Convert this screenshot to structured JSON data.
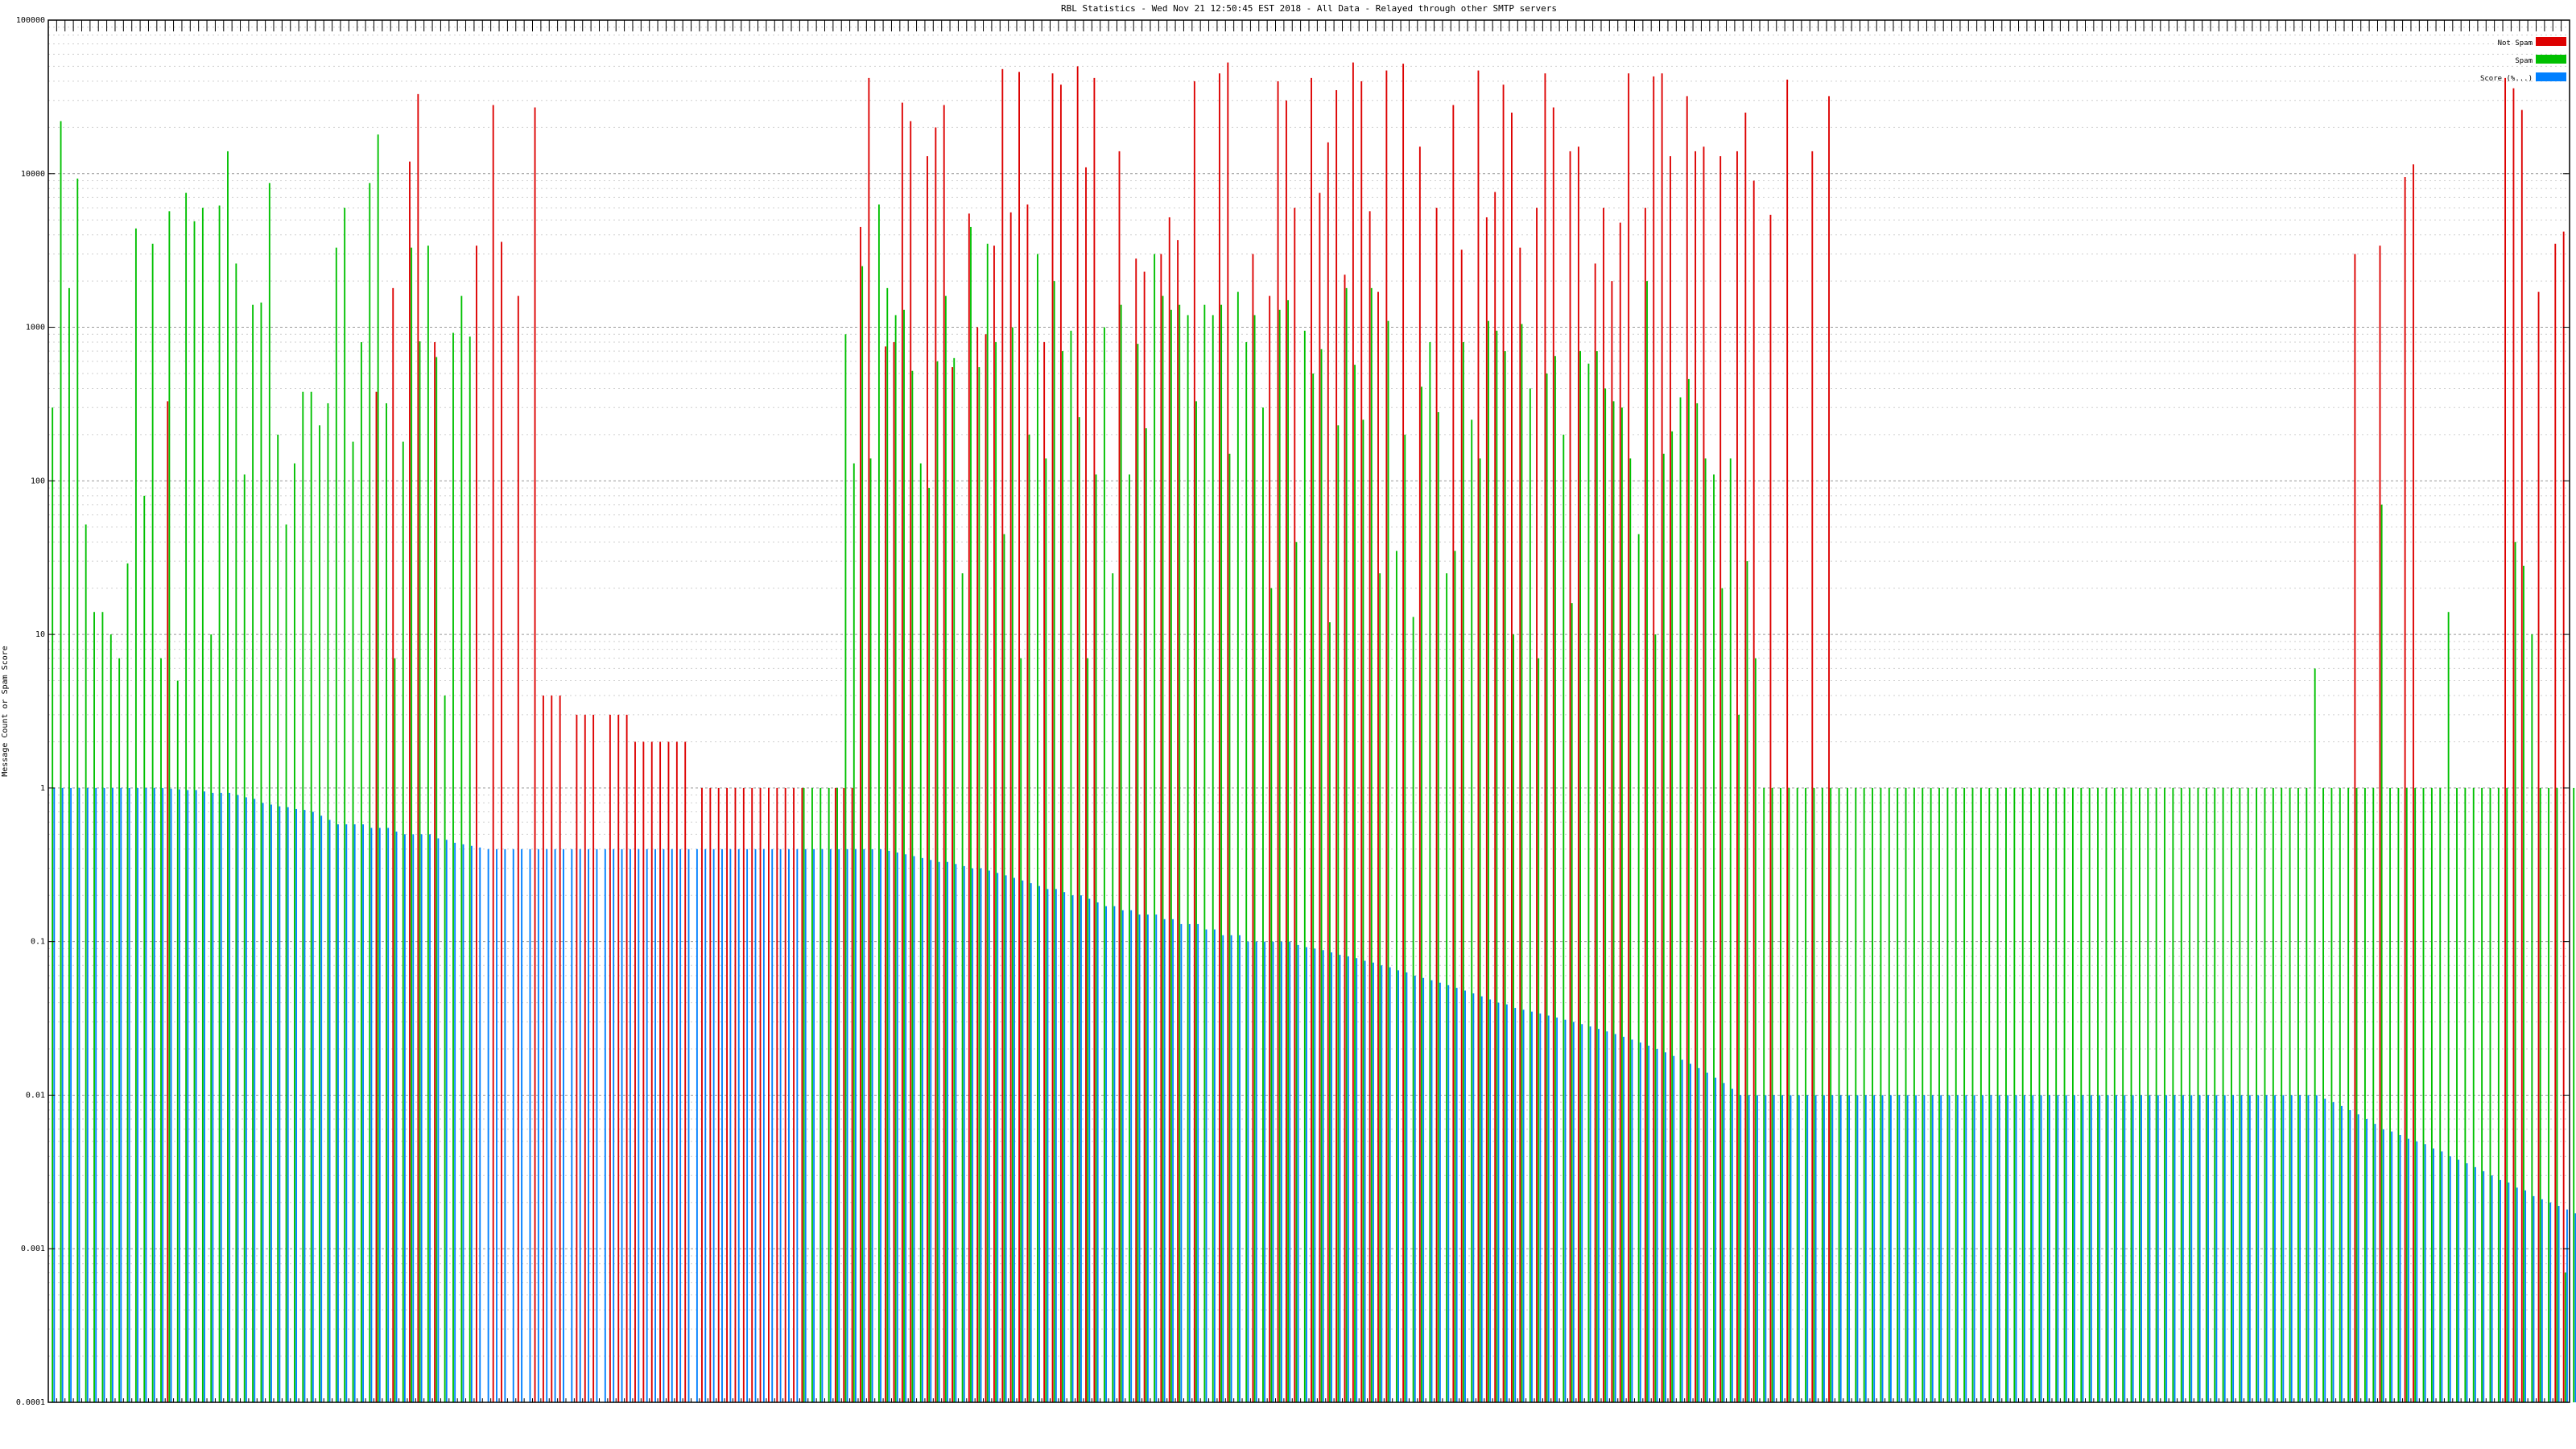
{
  "chart_data": {
    "type": "bar",
    "title": "RBL Statistics - Wed Nov 21 12:50:45 EST 2018 - All Data - Relayed through other SMTP servers",
    "ylabel": "Message Count or Spam Score",
    "xlabel": "",
    "yscale": "log",
    "ylim": [
      0.0001,
      100000
    ],
    "yticks": [
      "0.0001",
      "0.001",
      "0.01",
      "0.1",
      "1",
      "10",
      "100",
      "1000",
      "10000",
      "100000"
    ],
    "grid": true,
    "legend_position": "top-right",
    "series": [
      {
        "name": "Not Spam",
        "color": "#dd0000",
        "values": [
          0,
          0,
          0,
          0,
          0,
          0,
          0,
          0,
          0,
          0,
          0,
          0,
          0,
          0,
          330,
          0,
          0,
          0,
          0,
          0,
          0,
          0,
          0,
          0,
          0,
          0,
          0,
          0,
          0,
          0,
          0,
          0,
          0,
          0,
          0,
          0,
          0,
          0,
          0,
          380,
          0,
          1800,
          0,
          12000,
          33000,
          0,
          800,
          0,
          0,
          0,
          0,
          3400,
          0,
          28000,
          3600,
          0,
          1600,
          0,
          27000,
          4,
          4,
          4,
          0,
          3,
          3,
          3,
          0,
          3,
          3,
          3,
          2,
          2,
          2,
          2,
          2,
          2,
          2,
          0,
          1,
          1,
          1,
          1,
          1,
          1,
          1,
          1,
          1,
          1,
          1,
          1,
          1,
          0,
          0,
          0,
          1,
          1,
          1,
          4500,
          42000,
          0,
          750,
          800,
          29000,
          22000,
          0,
          13000,
          20000,
          28000,
          550,
          0,
          5500,
          1000,
          900,
          3400,
          48000,
          5600,
          46000,
          6300,
          0,
          800,
          45000,
          38000,
          0,
          50000,
          11000,
          42000,
          0,
          0,
          14000,
          0,
          2800,
          2300,
          0,
          3000,
          5200,
          3700,
          0,
          40000,
          0,
          0,
          45000,
          53000,
          0,
          0,
          3000,
          0,
          1600,
          40000,
          30000,
          6000,
          0,
          42000,
          7500,
          16000,
          35000,
          2200,
          53000,
          40000,
          5700,
          1700,
          47000,
          0,
          52000,
          0,
          15000,
          0,
          6000,
          0,
          28000,
          3200,
          0,
          47000,
          5200,
          7600,
          38000,
          25000,
          3300,
          0,
          6000,
          45000,
          27000,
          0,
          14000,
          15000,
          0,
          2600,
          6000,
          2000,
          4800,
          45000,
          0,
          6000,
          43000,
          45000,
          13000,
          0,
          32000,
          14000,
          15000,
          0,
          13000,
          0,
          14000,
          25000,
          9000,
          0,
          5400,
          0,
          41000,
          0,
          0,
          14000,
          0,
          32000,
          0,
          0,
          0,
          0,
          0,
          0,
          0,
          0,
          0,
          0,
          0,
          0,
          0,
          0,
          0,
          0,
          0,
          0,
          0,
          0,
          0,
          0,
          0,
          0,
          0,
          0,
          0,
          0,
          0,
          0,
          0,
          0,
          0,
          0,
          0,
          0,
          0,
          0,
          0,
          0,
          0,
          0,
          0,
          0,
          0,
          0,
          0,
          0,
          0,
          0,
          0,
          0,
          0,
          0,
          0,
          0,
          0,
          0,
          0,
          0,
          0,
          0,
          3000,
          0,
          0,
          3400,
          0,
          0,
          9500,
          11500,
          0,
          0,
          0,
          0,
          0,
          0,
          0,
          0,
          0,
          0,
          42000,
          36000,
          26000,
          0,
          1700,
          0,
          3500,
          4200
        ]
      },
      {
        "name": "Spam",
        "color": "#00c000",
        "values": [
          300,
          22000,
          1800,
          9300,
          52,
          14,
          14,
          10,
          7,
          29,
          4400,
          80,
          3500,
          7,
          5700,
          5,
          7500,
          4900,
          6000,
          10,
          6200,
          14000,
          2600,
          110,
          1400,
          1450,
          8700,
          200,
          52,
          130,
          380,
          380,
          230,
          320,
          3300,
          6000,
          180,
          800,
          8700,
          18000,
          320,
          7,
          180,
          3300,
          810,
          3400,
          640,
          4,
          920,
          1600,
          870,
          0,
          0,
          0,
          0,
          0,
          0,
          0,
          0,
          0,
          0,
          0,
          0,
          0,
          0,
          0,
          0,
          0,
          0,
          0,
          0,
          0,
          0,
          0,
          0,
          0,
          0,
          0,
          0,
          0,
          0,
          0,
          0,
          0,
          0,
          0,
          0,
          0,
          0,
          0,
          1,
          1,
          1,
          1,
          1,
          900,
          130,
          2500,
          140,
          6300,
          1800,
          1200,
          1300,
          520,
          130,
          90,
          600,
          1600,
          630,
          25,
          4500,
          550,
          3500,
          800,
          45,
          1000,
          7,
          200,
          3000,
          140,
          2000,
          700,
          950,
          260,
          7,
          110,
          1000,
          25,
          1400,
          110,
          780,
          220,
          3000,
          1600,
          1300,
          1400,
          1200,
          330,
          1400,
          1200,
          1400,
          150,
          1700,
          800,
          1200,
          300,
          20,
          1300,
          1500,
          40,
          950,
          500,
          720,
          12,
          230,
          1800,
          570,
          250,
          1800,
          25,
          1100,
          35,
          200,
          13,
          410,
          800,
          280,
          25,
          35,
          800,
          250,
          140,
          1100,
          950,
          700,
          10,
          1050,
          400,
          7,
          500,
          650,
          200,
          16,
          700,
          580,
          700,
          400,
          330,
          300,
          140,
          45,
          2000,
          10,
          150,
          210,
          350,
          460,
          320,
          140,
          110,
          20,
          140,
          3,
          30,
          7,
          1,
          1,
          1,
          1,
          1,
          1,
          1,
          1,
          1,
          1,
          1,
          1,
          1,
          1,
          1,
          1,
          1,
          1,
          1,
          1,
          1,
          1,
          1,
          1,
          1,
          1,
          1,
          1,
          1,
          1,
          1,
          1,
          1,
          1,
          1,
          1,
          1,
          1,
          1,
          1,
          1,
          1,
          1,
          1,
          1,
          1,
          1,
          1,
          1,
          1,
          1,
          1,
          1,
          1,
          1,
          1,
          1,
          1,
          1,
          1,
          1,
          1,
          1,
          1,
          1,
          1,
          6,
          1,
          1,
          1,
          1,
          1,
          1,
          1,
          70,
          1,
          1,
          1,
          1,
          1,
          1,
          1,
          14,
          1,
          1,
          1,
          1,
          1,
          1,
          1,
          40,
          28,
          10,
          1,
          1,
          1,
          0.0007,
          1
        ]
      },
      {
        "name": "Score (%...)",
        "color": "#0080ff",
        "values": [
          1,
          1,
          1,
          1,
          1,
          1,
          1,
          1,
          1,
          1,
          1,
          1,
          1,
          1,
          0.99,
          0.98,
          0.97,
          0.97,
          0.95,
          0.93,
          0.93,
          0.93,
          0.9,
          0.87,
          0.85,
          0.8,
          0.78,
          0.76,
          0.75,
          0.73,
          0.72,
          0.7,
          0.66,
          0.62,
          0.58,
          0.58,
          0.58,
          0.58,
          0.55,
          0.55,
          0.55,
          0.52,
          0.5,
          0.5,
          0.5,
          0.5,
          0.47,
          0.46,
          0.44,
          0.43,
          0.42,
          0.41,
          0.4,
          0.4,
          0.4,
          0.4,
          0.4,
          0.4,
          0.4,
          0.4,
          0.4,
          0.4,
          0.4,
          0.4,
          0.4,
          0.4,
          0.4,
          0.4,
          0.4,
          0.4,
          0.4,
          0.4,
          0.4,
          0.4,
          0.4,
          0.4,
          0.4,
          0.4,
          0.4,
          0.4,
          0.4,
          0.4,
          0.4,
          0.4,
          0.4,
          0.4,
          0.4,
          0.4,
          0.4,
          0.4,
          0.4,
          0.4,
          0.4,
          0.4,
          0.4,
          0.4,
          0.4,
          0.4,
          0.4,
          0.4,
          0.39,
          0.38,
          0.37,
          0.36,
          0.35,
          0.34,
          0.33,
          0.33,
          0.32,
          0.31,
          0.3,
          0.3,
          0.29,
          0.28,
          0.27,
          0.26,
          0.25,
          0.24,
          0.23,
          0.22,
          0.22,
          0.21,
          0.2,
          0.2,
          0.19,
          0.18,
          0.17,
          0.17,
          0.16,
          0.16,
          0.15,
          0.15,
          0.15,
          0.14,
          0.14,
          0.13,
          0.13,
          0.13,
          0.12,
          0.12,
          0.11,
          0.11,
          0.11,
          0.1,
          0.1,
          0.1,
          0.1,
          0.1,
          0.1,
          0.095,
          0.092,
          0.09,
          0.088,
          0.085,
          0.082,
          0.08,
          0.078,
          0.075,
          0.073,
          0.07,
          0.068,
          0.065,
          0.063,
          0.06,
          0.058,
          0.056,
          0.054,
          0.052,
          0.05,
          0.048,
          0.046,
          0.044,
          0.042,
          0.04,
          0.039,
          0.037,
          0.036,
          0.035,
          0.034,
          0.033,
          0.032,
          0.031,
          0.03,
          0.029,
          0.028,
          0.027,
          0.026,
          0.025,
          0.024,
          0.023,
          0.022,
          0.021,
          0.02,
          0.019,
          0.018,
          0.017,
          0.016,
          0.015,
          0.014,
          0.013,
          0.012,
          0.011,
          0.01,
          0.01,
          0.01,
          0.01,
          0.01,
          0.01,
          0.01,
          0.01,
          0.01,
          0.01,
          0.01,
          0.01,
          0.01,
          0.01,
          0.01,
          0.01,
          0.01,
          0.01,
          0.01,
          0.01,
          0.01,
          0.01,
          0.01,
          0.01,
          0.01,
          0.01,
          0.01,
          0.01,
          0.01,
          0.01,
          0.01,
          0.01,
          0.01,
          0.01,
          0.01,
          0.01,
          0.01,
          0.01,
          0.01,
          0.01,
          0.01,
          0.01,
          0.01,
          0.01,
          0.01,
          0.01,
          0.01,
          0.01,
          0.01,
          0.01,
          0.01,
          0.01,
          0.01,
          0.01,
          0.01,
          0.01,
          0.01,
          0.01,
          0.01,
          0.01,
          0.01,
          0.01,
          0.01,
          0.01,
          0.01,
          0.01,
          0.01,
          0.01,
          0.01,
          0.01,
          0.0095,
          0.009,
          0.0085,
          0.008,
          0.0075,
          0.007,
          0.0065,
          0.006,
          0.0058,
          0.0055,
          0.0052,
          0.005,
          0.0048,
          0.0045,
          0.0043,
          0.004,
          0.0038,
          0.0036,
          0.0034,
          0.0032,
          0.003,
          0.0028,
          0.0027,
          0.0025,
          0.0024,
          0.0022,
          0.0021,
          0.002,
          0.0019,
          0.0018,
          0.0017,
          0.0016,
          0.0007,
          0.0006,
          0.0005
        ]
      }
    ]
  }
}
